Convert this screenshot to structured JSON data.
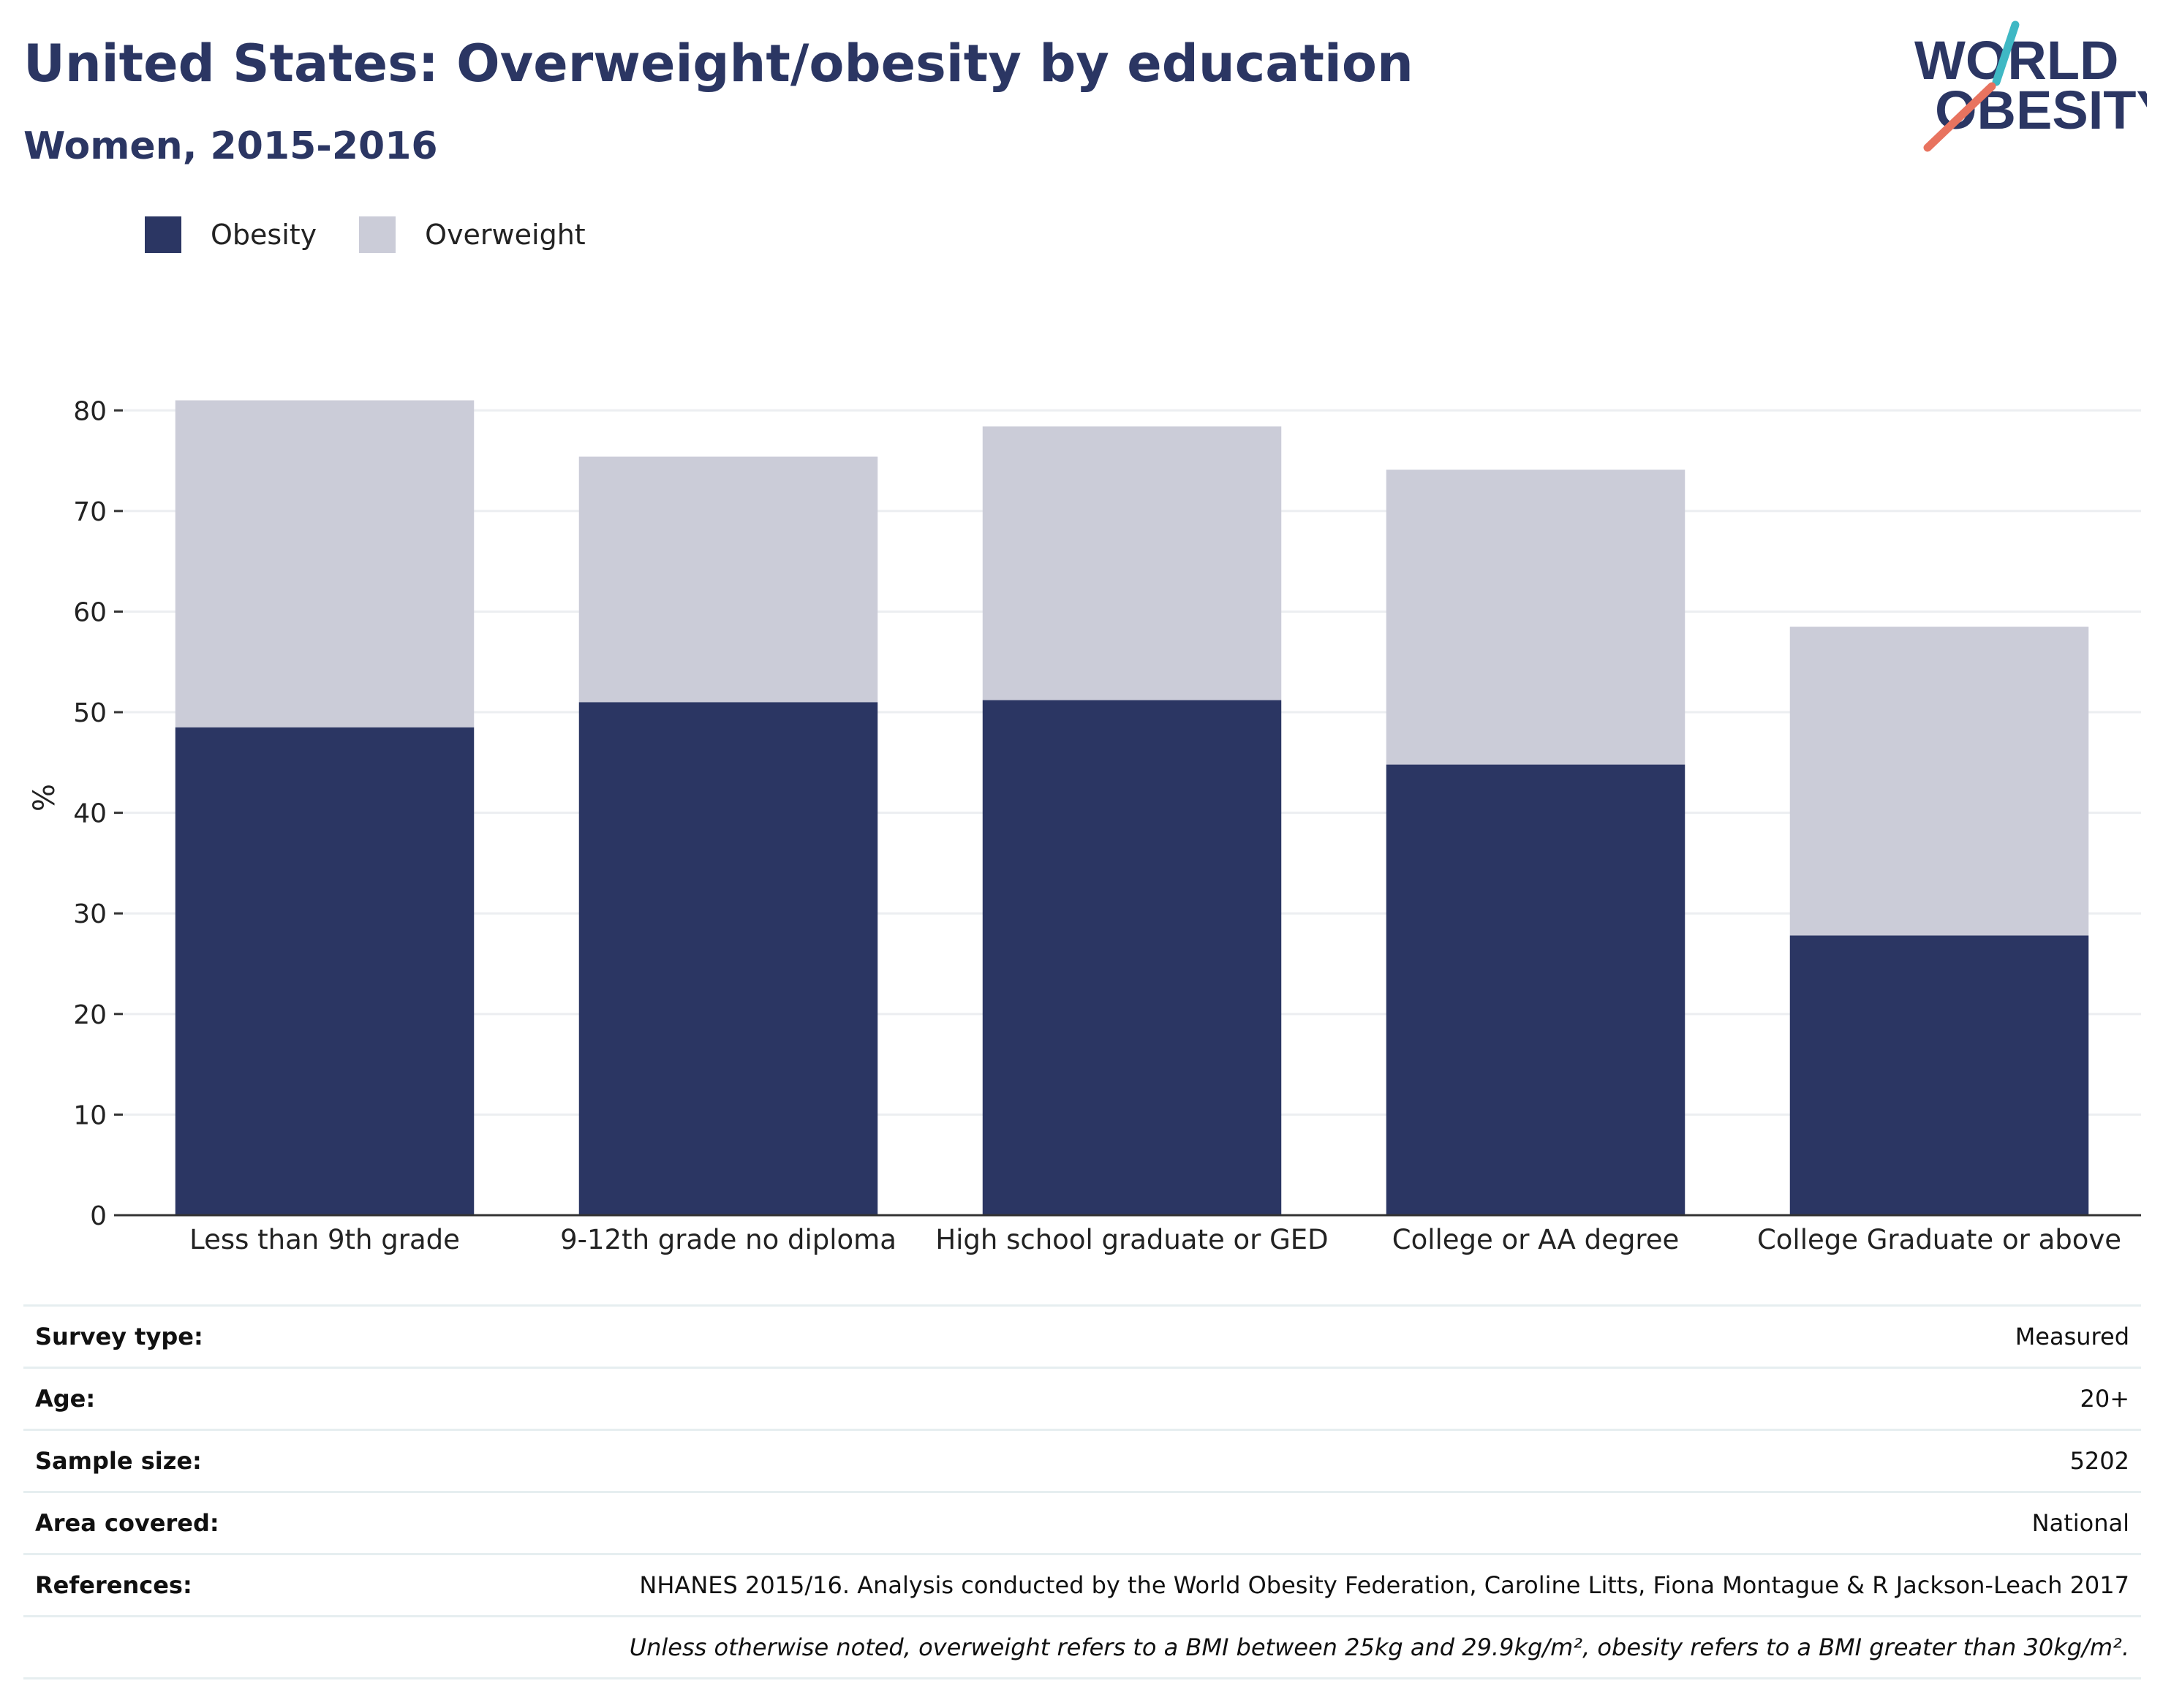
{
  "header": {
    "title": "United States: Overweight/obesity by education",
    "subtitle": "Women, 2015-2016"
  },
  "logo": {
    "line1": "WORLD",
    "line2": "OBESITY",
    "accent_teal": "#3fb8c4",
    "accent_coral": "#e8735f"
  },
  "legend": [
    {
      "label": "Obesity",
      "color": "#2b3663"
    },
    {
      "label": "Overweight",
      "color": "#cbccd8"
    }
  ],
  "chart_data": {
    "type": "bar",
    "stacked": true,
    "categories": [
      "Less than 9th grade",
      "9-12th grade no diploma",
      "High school graduate or GED",
      "College or AA degree",
      "College Graduate or above"
    ],
    "series": [
      {
        "name": "Obesity",
        "color": "#2b3663",
        "values": [
          48.5,
          51.0,
          51.2,
          44.8,
          27.8
        ]
      },
      {
        "name": "Overweight",
        "color": "#cbccd8",
        "values": [
          32.5,
          24.4,
          27.2,
          29.3,
          30.7
        ]
      }
    ],
    "ylabel": "%",
    "ylim": [
      0,
      83
    ],
    "yticks": [
      0,
      10,
      20,
      30,
      40,
      50,
      60,
      70,
      80
    ],
    "grid": true,
    "legend_position": "top-left"
  },
  "meta": {
    "rows": [
      {
        "label": "Survey type:",
        "value": "Measured"
      },
      {
        "label": "Age:",
        "value": "20+"
      },
      {
        "label": "Sample size:",
        "value": "5202"
      },
      {
        "label": "Area covered:",
        "value": "National"
      },
      {
        "label": "References:",
        "value": "NHANES 2015/16. Analysis conducted by the World Obesity Federation, Caroline Litts, Fiona Montague & R Jackson-Leach 2017"
      }
    ],
    "note": "Unless otherwise noted, overweight refers to a BMI between 25kg and 29.9kg/m², obesity refers to a BMI greater than 30kg/m²."
  }
}
